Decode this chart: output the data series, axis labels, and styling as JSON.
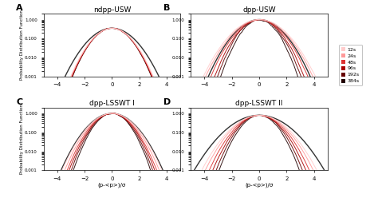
{
  "panels": [
    "A",
    "B",
    "C",
    "D"
  ],
  "titles": [
    "ndpp-USW",
    "dpp-USW",
    "dpp-LSSWT I",
    "dpp-LSSWT II"
  ],
  "xlabel": "(p-<p>)/σ",
  "ylabel": "Probability Distribution Function",
  "xlim": [
    -5,
    5
  ],
  "ylim_log": [
    0.001,
    2.0
  ],
  "legend_labels": [
    "12s",
    "24s",
    "48s",
    "96s",
    "192s",
    "384s"
  ],
  "legend_colors": [
    "#ffcccc",
    "#ff9999",
    "#dd3333",
    "#aa0000",
    "#660000",
    "#220000"
  ],
  "xticks": [
    -4,
    -2,
    0,
    2,
    4
  ],
  "gaussian_color": "#333333",
  "panel_peaks": [
    0.35,
    1.0,
    1.0,
    0.8
  ],
  "panel_sigmas_data": [
    [
      0.88,
      0.87,
      0.86,
      0.85,
      0.85,
      0.84
    ],
    [
      1.1,
      1.05,
      0.95,
      0.88,
      0.82,
      0.76
    ],
    [
      0.98,
      0.93,
      0.88,
      0.84,
      0.8,
      0.76
    ],
    [
      1.15,
      1.08,
      1.0,
      0.93,
      0.86,
      0.8
    ]
  ],
  "panel_noise": [
    0.006,
    0.025,
    0.015,
    0.012
  ],
  "gauss_sigma_ref": [
    1.0,
    1.0,
    1.0,
    1.3
  ],
  "n_points": 400,
  "smooth_window": 15
}
